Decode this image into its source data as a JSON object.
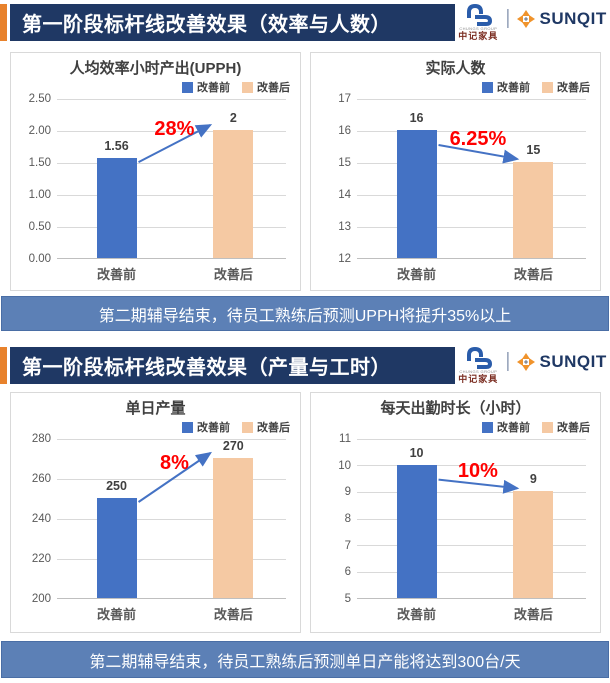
{
  "colors": {
    "navy": "#1F3864",
    "orange_accent": "#E8822C",
    "banner_blue": "#5C80B6",
    "bar_before": "#4472C4",
    "bar_after": "#F5C9A3",
    "arrow_blue": "#4472C4",
    "percent_red": "#FF0000",
    "gridline": "#D9D9D9",
    "axis_text": "#595959",
    "label_text": "#404040"
  },
  "logo": {
    "chungs_group_small": "CHUNGS GROUP",
    "chungs_cn": "中记家具",
    "separator": "|",
    "sunqit": "SUNQIT"
  },
  "sections": [
    {
      "title": "第一阶段标杆线改善效果（效率与人数）",
      "banner": "第二期辅导结束，待员工熟练后预测UPPH将提升35%以上"
    },
    {
      "title": "第一阶段标杆线改善效果（产量与工时）",
      "banner": "第二期辅导结束，待员工熟练后预测单日产能将达到300台/天"
    }
  ],
  "chart_data": [
    {
      "type": "bar",
      "title": "人均效率小时产出(UPPH)",
      "categories": [
        "改善前",
        "改善后"
      ],
      "values": [
        1.56,
        2
      ],
      "value_labels": [
        "1.56",
        "2"
      ],
      "legend": [
        "改善前",
        "改善后"
      ],
      "legend_position": "top-right",
      "grid": true,
      "ylim": [
        0,
        2.5
      ],
      "ytick_step": 0.5,
      "ytick_decimals": 2,
      "annotation": {
        "label": "28%",
        "direction": "up"
      }
    },
    {
      "type": "bar",
      "title": "实际人数",
      "categories": [
        "改善前",
        "改善后"
      ],
      "values": [
        16,
        15
      ],
      "value_labels": [
        "16",
        "15"
      ],
      "legend": [
        "改善前",
        "改善后"
      ],
      "legend_position": "top-right",
      "grid": true,
      "ylim": [
        12,
        17
      ],
      "ytick_step": 1,
      "ytick_decimals": 0,
      "annotation": {
        "label": "6.25%",
        "direction": "down"
      }
    },
    {
      "type": "bar",
      "title": "单日产量",
      "categories": [
        "改善前",
        "改善后"
      ],
      "values": [
        250,
        270
      ],
      "value_labels": [
        "250",
        "270"
      ],
      "legend": [
        "改善前",
        "改善后"
      ],
      "legend_position": "top-right",
      "grid": true,
      "ylim": [
        200,
        280
      ],
      "ytick_step": 20,
      "ytick_decimals": 0,
      "annotation": {
        "label": "8%",
        "direction": "up"
      }
    },
    {
      "type": "bar",
      "title": "每天出勤时长（小时）",
      "categories": [
        "改善前",
        "改善后"
      ],
      "values": [
        10,
        9
      ],
      "value_labels": [
        "10",
        "9"
      ],
      "legend": [
        "改善前",
        "改善后"
      ],
      "legend_position": "top-right",
      "grid": true,
      "ylim": [
        5,
        11
      ],
      "ytick_step": 1,
      "ytick_decimals": 0,
      "annotation": {
        "label": "10%",
        "direction": "down"
      }
    }
  ]
}
